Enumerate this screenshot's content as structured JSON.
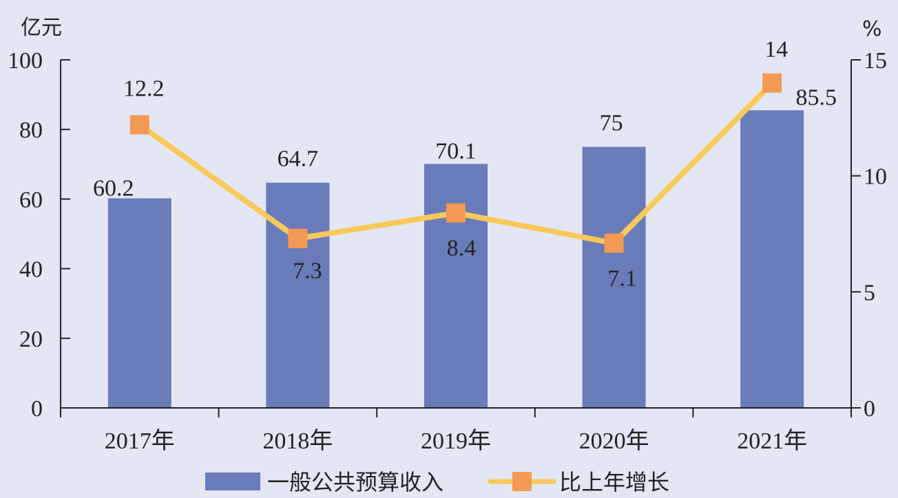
{
  "chart_data": {
    "type": "bar",
    "categories": [
      "2017年",
      "2018年",
      "2019年",
      "2020年",
      "2021年"
    ],
    "series": [
      {
        "name": "一般公共预算收入",
        "type": "bar",
        "axis": "left",
        "values": [
          60.2,
          64.7,
          70.1,
          75,
          85.5
        ],
        "labels": [
          "60.2",
          "64.7",
          "70.1",
          "75",
          "85.5"
        ],
        "color": "#6a7bb9"
      },
      {
        "name": "比上年增长",
        "type": "line",
        "axis": "right",
        "values": [
          12.2,
          7.3,
          8.4,
          7.1,
          14
        ],
        "labels": [
          "12.2",
          "7.3",
          "8.4",
          "7.1",
          "14"
        ],
        "line_color": "#f9c95b",
        "marker_color": "#f39a55"
      }
    ],
    "y_left": {
      "unit": "亿元",
      "ylim": [
        0,
        100
      ],
      "ticks": [
        0,
        20,
        40,
        60,
        80,
        100
      ],
      "tick_labels": [
        "0",
        "20",
        "40",
        "60",
        "80",
        "100"
      ]
    },
    "y_right": {
      "unit": "%",
      "ylim": [
        0,
        15
      ],
      "ticks": [
        0,
        5,
        10,
        15
      ],
      "tick_labels": [
        "0",
        "5",
        "10",
        "15"
      ]
    },
    "grid": false,
    "legend_position": "bottom-center",
    "background": "#e3e7f4"
  }
}
